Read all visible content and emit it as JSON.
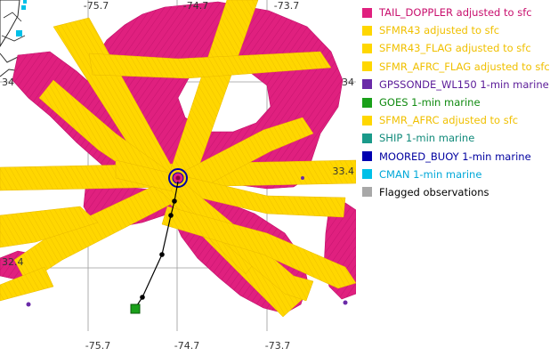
{
  "map": {
    "lon_ticks_top": [
      "-75.7",
      "-74.7",
      "-73.7"
    ],
    "lon_ticks_bottom": [
      "-75.7",
      "-74.7",
      "-73.7"
    ],
    "lat_ticks_left": [
      "34",
      "32.4"
    ],
    "lat_ticks_right": [
      "34",
      "33.4"
    ],
    "colors": {
      "tail_doppler": "#e0207f",
      "sfmr": "#ffd700",
      "land": "#2a2a2a",
      "cman": "#00c0e8",
      "goes": "#1aa01a",
      "storm_center": "#0000a8",
      "track": "#000000",
      "grid": "#9a9a9a"
    }
  },
  "legend": {
    "items": [
      {
        "label": "TAIL_DOPPLER adjusted to sfc",
        "color": "#e0207f",
        "text_color": "#c8106e"
      },
      {
        "label": "SFMR43 adjusted to sfc",
        "color": "#ffd700",
        "text_color": "#f0c000"
      },
      {
        "label": "SFMR43_FLAG adjusted to sfc",
        "color": "#ffd700",
        "text_color": "#f0c000"
      },
      {
        "label": "SFMR_AFRC_FLAG adjusted to sfc",
        "color": "#ffd700",
        "text_color": "#f0c000"
      },
      {
        "label": "GPSSONDE_WL150 1-min marine",
        "color": "#6a2aa8",
        "text_color": "#5a1a98"
      },
      {
        "label": "GOES 1-min marine",
        "color": "#1aa01a",
        "text_color": "#108a10"
      },
      {
        "label": "SFMR_AFRC adjusted to sfc",
        "color": "#ffd700",
        "text_color": "#f0c000"
      },
      {
        "label": "SHIP 1-min marine",
        "color": "#1a9a8a",
        "text_color": "#108a7a"
      },
      {
        "label": "MOORED_BUOY 1-min marine",
        "color": "#0000b0",
        "text_color": "#0000a0"
      },
      {
        "label": "CMAN 1-min marine",
        "color": "#00c0e8",
        "text_color": "#00a8d8"
      },
      {
        "label": "Flagged observations",
        "color": "#a8a8a8",
        "text_color": "#000000"
      }
    ]
  }
}
